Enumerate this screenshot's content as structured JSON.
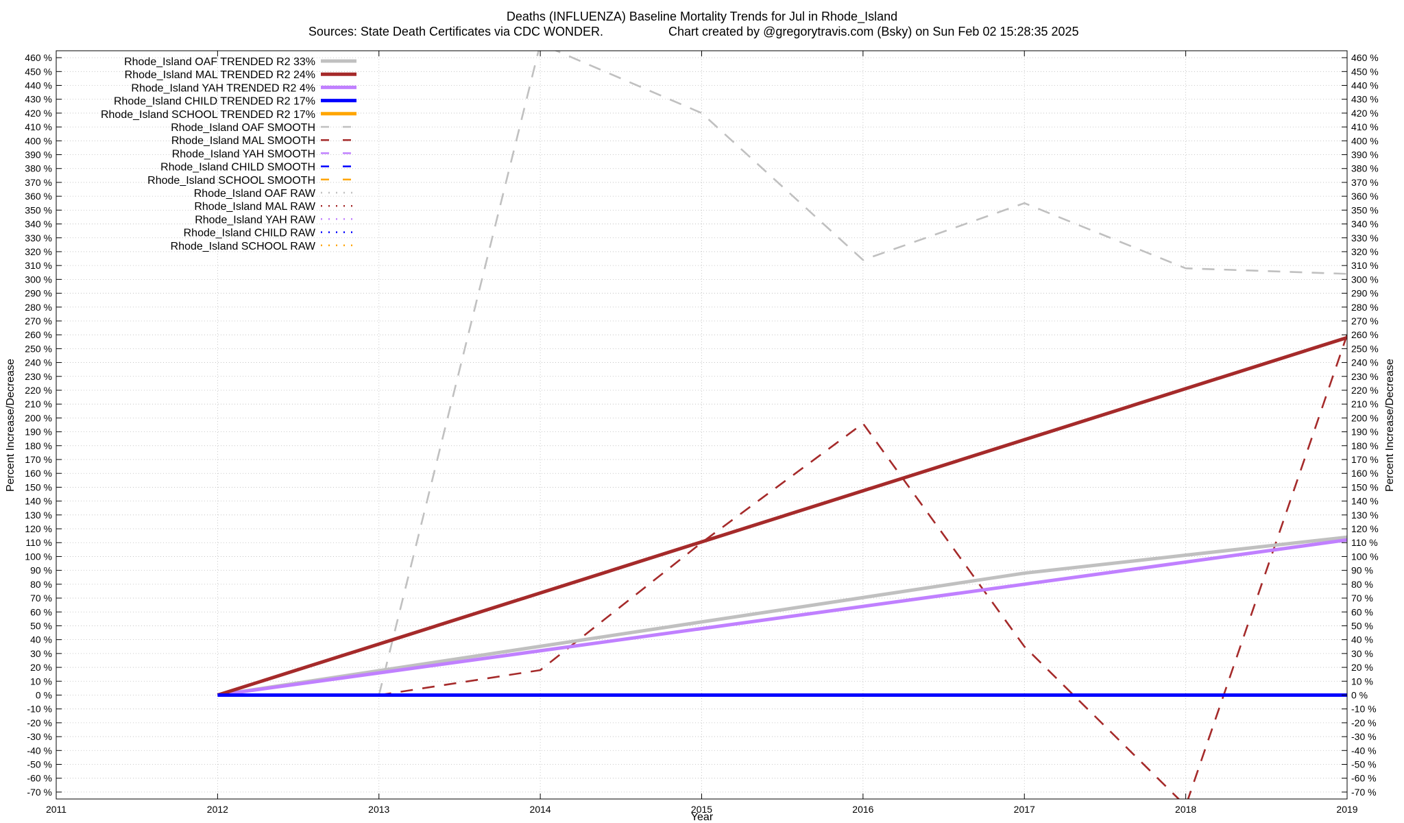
{
  "chart_data": {
    "type": "line",
    "title": "Deaths (INFLUENZA)  Baseline Mortality Trends for Jul in Rhode_Island",
    "subtitle_left": "Sources: State Death Certificates via CDC WONDER.",
    "subtitle_right": "Chart created by @gregorytravis.com (Bsky) on Sun Feb 02 15:28:35 2025",
    "xlabel": "Year",
    "ylabel": "Percent Increase/Decrease",
    "ylabel_right": "Percent Increase/Decrease",
    "xlim": [
      2011,
      2019
    ],
    "ylim": [
      -75,
      465
    ],
    "x_ticks": [
      "2011",
      "2012",
      "2013",
      "2014",
      "2015",
      "2016",
      "2017",
      "2018",
      "2019"
    ],
    "y_tick_step": 10,
    "y_tick_suffix": " %",
    "grid": true,
    "legend_position": "top-left",
    "series": [
      {
        "name": "Rhode_Island OAF TRENDED R2  33%",
        "style": "solid",
        "color": "#c0c0c0",
        "x": [
          2012,
          2017,
          2019
        ],
        "y": [
          0,
          88,
          114
        ]
      },
      {
        "name": "Rhode_Island MAL TRENDED R2  24%",
        "style": "solid",
        "color": "#a52a2a",
        "x": [
          2012,
          2019
        ],
        "y": [
          0,
          258
        ]
      },
      {
        "name": "Rhode_Island YAH TRENDED R2   4%",
        "style": "solid",
        "color": "#c080ff",
        "x": [
          2012,
          2019
        ],
        "y": [
          0,
          112
        ]
      },
      {
        "name": "Rhode_Island CHILD TRENDED R2  17%",
        "style": "solid",
        "color": "#0000ff",
        "x": [
          2012,
          2019
        ],
        "y": [
          0,
          0
        ]
      },
      {
        "name": "Rhode_Island SCHOOL TRENDED R2  17%",
        "style": "solid",
        "color": "#ffa500",
        "x": [],
        "y": []
      },
      {
        "name": "Rhode_Island OAF SMOOTH",
        "style": "dashed",
        "color": "#c0c0c0",
        "x": [
          2013,
          2014,
          2015,
          2016,
          2017,
          2018,
          2019
        ],
        "y": [
          0,
          470,
          420,
          314,
          355,
          308,
          304
        ]
      },
      {
        "name": "Rhode_Island MAL SMOOTH",
        "style": "dashed",
        "color": "#a52a2a",
        "x": [
          2013,
          2014,
          2015,
          2016,
          2017,
          2018,
          2019
        ],
        "y": [
          0,
          18,
          110,
          196,
          35,
          -80,
          260
        ]
      },
      {
        "name": "Rhode_Island YAH SMOOTH",
        "style": "dashed",
        "color": "#c080ff",
        "x": [],
        "y": []
      },
      {
        "name": "Rhode_Island CHILD SMOOTH",
        "style": "dashed",
        "color": "#0000ff",
        "x": [],
        "y": []
      },
      {
        "name": "Rhode_Island SCHOOL SMOOTH",
        "style": "dashed",
        "color": "#ffa500",
        "x": [],
        "y": []
      },
      {
        "name": "Rhode_Island OAF RAW",
        "style": "dotted",
        "color": "#c0c0c0",
        "x": [],
        "y": []
      },
      {
        "name": "Rhode_Island MAL RAW",
        "style": "dotted",
        "color": "#a52a2a",
        "x": [],
        "y": []
      },
      {
        "name": "Rhode_Island YAH RAW",
        "style": "dotted",
        "color": "#c080ff",
        "x": [],
        "y": []
      },
      {
        "name": "Rhode_Island CHILD RAW",
        "style": "dotted",
        "color": "#0000ff",
        "x": [],
        "y": []
      },
      {
        "name": "Rhode_Island SCHOOL RAW",
        "style": "dotted",
        "color": "#ffa500",
        "x": [],
        "y": []
      }
    ]
  }
}
